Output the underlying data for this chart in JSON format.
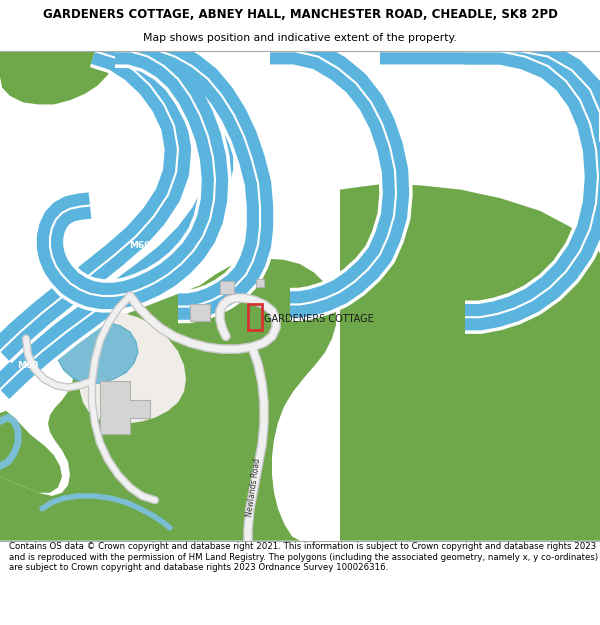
{
  "title_line1": "GARDENERS COTTAGE, ABNEY HALL, MANCHESTER ROAD, CHEADLE, SK8 2PD",
  "title_line2": "Map shows position and indicative extent of the property.",
  "footer_text": "Contains OS data © Crown copyright and database right 2021. This information is subject to Crown copyright and database rights 2023 and is reproduced with the permission of HM Land Registry. The polygons (including the associated geometry, namely x, y co-ordinates) are subject to Crown copyright and database rights 2023 Ordnance Survey 100026316.",
  "bg_color": "#ffffff",
  "map_bg": "#f0ede8",
  "green_color": "#6fa84a",
  "blue_water": "#7bbdd4",
  "motorway_color": "#5ab4de",
  "motorway_white": "#ffffff",
  "building_color": "#d4d4d4",
  "building_outline": "#b0b0b0",
  "road_color": "#e8e8e8",
  "red_box_color": "#d63333",
  "title_fontsize": 8.5,
  "subtitle_fontsize": 7.8,
  "footer_fontsize": 6.2,
  "figsize": [
    6.0,
    6.25
  ],
  "dpi": 100
}
